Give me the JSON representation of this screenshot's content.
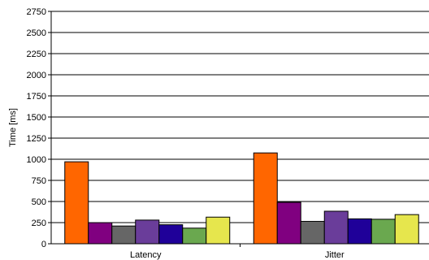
{
  "chart_data": {
    "type": "bar",
    "title": "",
    "xlabel": "",
    "ylabel": "Time [ms]",
    "ylim": [
      0,
      2750
    ],
    "ytick_step": 250,
    "yticks": [
      "0",
      "250",
      "500",
      "750",
      "1000",
      "1250",
      "1500",
      "1750",
      "2000",
      "2250",
      "2500",
      "2750"
    ],
    "grid": true,
    "legend": "none",
    "categories": [
      "Latency",
      "Jitter"
    ],
    "series": [
      {
        "color": "#ff6600",
        "values": [
          970,
          1075
        ]
      },
      {
        "color": "#800080",
        "values": [
          250,
          490
        ]
      },
      {
        "color": "#666666",
        "values": [
          210,
          265
        ]
      },
      {
        "color": "#6a3d9a",
        "values": [
          280,
          385
        ]
      },
      {
        "color": "#1f0099",
        "values": [
          225,
          295
        ]
      },
      {
        "color": "#6aa84f",
        "values": [
          185,
          290
        ]
      },
      {
        "color": "#e6e64d",
        "values": [
          315,
          345
        ]
      }
    ]
  }
}
